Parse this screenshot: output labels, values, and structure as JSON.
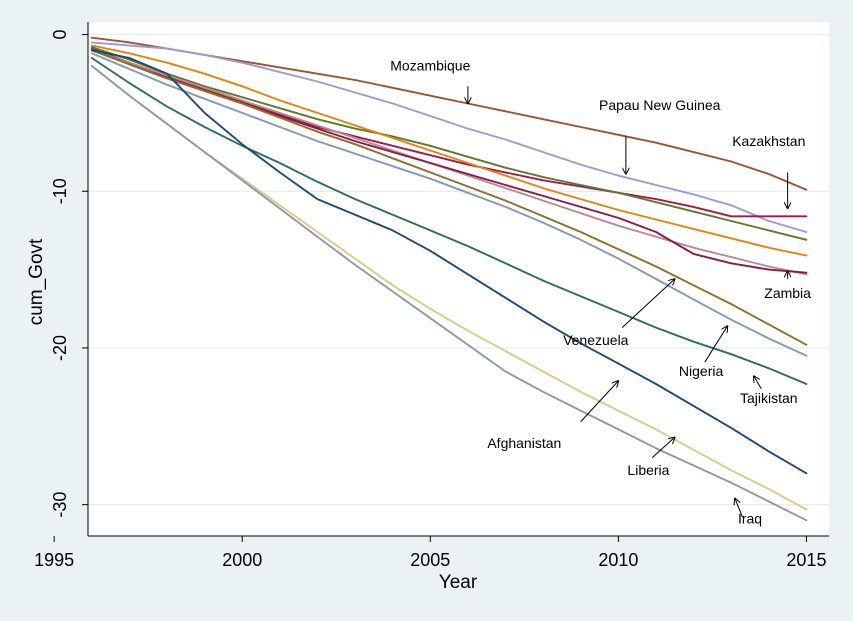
{
  "chart_data": {
    "type": "line",
    "title": "",
    "xlabel": "Year",
    "ylabel": "cum_Govt",
    "xlim": [
      1995,
      2015
    ],
    "ylim": [
      -32,
      0.8
    ],
    "xticks": [
      1995,
      2000,
      2005,
      2010,
      2015
    ],
    "yticks": [
      0,
      -10,
      -20,
      -30
    ],
    "grid": "horizontal",
    "legend": "none",
    "x": [
      1996,
      1997,
      1998,
      1999,
      2000,
      2001,
      2002,
      2003,
      2004,
      2005,
      2006,
      2007,
      2008,
      2009,
      2010,
      2011,
      2012,
      2013,
      2014,
      2015
    ],
    "series": [
      {
        "color": "#a0522d",
        "values": [
          -0.2,
          -0.5,
          -0.9,
          -1.3,
          -1.7,
          -2.1,
          -2.5,
          -2.9,
          -3.4,
          -3.9,
          -4.4,
          -4.9,
          -5.4,
          -5.9,
          -6.4,
          -6.9,
          -7.5,
          -8.1,
          -8.9,
          -9.9
        ]
      },
      {
        "color": "#9a9ad8",
        "values": [
          -0.5,
          -0.7,
          -0.9,
          -1.3,
          -1.8,
          -2.4,
          -3.0,
          -3.7,
          -4.4,
          -5.2,
          -6.0,
          -6.7,
          -7.5,
          -8.3,
          -9.0,
          -9.6,
          -10.2,
          -10.9,
          -11.9,
          -12.6
        ]
      },
      {
        "color": "#a8164a",
        "values": [
          -0.9,
          -1.8,
          -2.7,
          -3.5,
          -4.3,
          -5.1,
          -5.9,
          -6.5,
          -7.1,
          -7.7,
          -8.3,
          -8.8,
          -9.3,
          -9.7,
          -10.1,
          -10.5,
          -11.0,
          -11.6,
          -11.6,
          -11.6
        ]
      },
      {
        "color": "#5b7a2a",
        "values": [
          -0.8,
          -1.6,
          -2.5,
          -3.3,
          -4.0,
          -4.7,
          -5.4,
          -6.0,
          -6.5,
          -7.1,
          -7.8,
          -8.5,
          -9.1,
          -9.6,
          -10.1,
          -10.7,
          -11.3,
          -11.9,
          -12.5,
          -13.1
        ]
      },
      {
        "color": "#e6820e",
        "values": [
          -0.7,
          -1.2,
          -1.8,
          -2.5,
          -3.3,
          -4.2,
          -5.0,
          -5.8,
          -6.6,
          -7.4,
          -8.2,
          -9.0,
          -9.8,
          -10.5,
          -11.2,
          -11.8,
          -12.4,
          -13.0,
          -13.6,
          -14.1
        ]
      },
      {
        "color": "#b88c8c",
        "values": [
          -1.0,
          -1.8,
          -2.6,
          -3.4,
          -4.2,
          -5.0,
          -5.8,
          -6.6,
          -7.4,
          -8.2,
          -9.0,
          -9.8,
          -10.6,
          -11.4,
          -12.2,
          -12.9,
          -13.6,
          -14.2,
          -14.8,
          -15.3
        ]
      },
      {
        "color": "#8b1a4a",
        "values": [
          -1.0,
          -1.9,
          -2.8,
          -3.6,
          -4.4,
          -5.2,
          -6.0,
          -6.8,
          -7.5,
          -8.2,
          -8.9,
          -9.6,
          -10.3,
          -11.0,
          -11.7,
          -12.6,
          -14.0,
          -14.6,
          -15.0,
          -15.2
        ]
      },
      {
        "color": "#8f6e2a",
        "values": [
          -1.0,
          -1.9,
          -2.8,
          -3.6,
          -4.4,
          -5.3,
          -6.2,
          -7.0,
          -7.9,
          -8.8,
          -9.7,
          -10.6,
          -11.6,
          -12.6,
          -13.7,
          -14.8,
          -16.0,
          -17.2,
          -18.5,
          -19.8
        ]
      },
      {
        "color": "#7f9bb4",
        "values": [
          -1.2,
          -2.2,
          -3.2,
          -4.1,
          -5.0,
          -5.9,
          -6.8,
          -7.6,
          -8.4,
          -9.2,
          -10.1,
          -11.0,
          -12.0,
          -13.1,
          -14.3,
          -15.6,
          -16.9,
          -18.2,
          -19.4,
          -20.5
        ]
      },
      {
        "color": "#2e6e62",
        "values": [
          -1.5,
          -3.1,
          -4.6,
          -5.9,
          -7.1,
          -8.2,
          -9.4,
          -10.5,
          -11.5,
          -12.5,
          -13.5,
          -14.6,
          -15.7,
          -16.7,
          -17.7,
          -18.7,
          -19.6,
          -20.4,
          -21.3,
          -22.3
        ]
      },
      {
        "color": "#1e4a78",
        "values": [
          -1.0,
          -1.5,
          -2.5,
          -5.0,
          -7.0,
          -8.8,
          -10.5,
          -11.5,
          -12.5,
          -13.8,
          -15.3,
          -16.8,
          -18.3,
          -19.7,
          -21.0,
          -22.3,
          -23.7,
          -25.1,
          -26.6,
          -28.0
        ]
      },
      {
        "color": "#d9c98a",
        "values": [
          -2.0,
          -3.9,
          -5.7,
          -7.5,
          -9.2,
          -10.9,
          -12.6,
          -14.3,
          -16.0,
          -17.5,
          -18.9,
          -20.2,
          -21.5,
          -22.8,
          -24.0,
          -25.2,
          -26.5,
          -27.8,
          -29.0,
          -30.3
        ]
      },
      {
        "color": "#8d9aa0",
        "values": [
          -2.0,
          -3.9,
          -5.7,
          -7.5,
          -9.3,
          -11.1,
          -12.9,
          -14.7,
          -16.4,
          -18.1,
          -19.8,
          -21.5,
          -22.8,
          -24.0,
          -25.2,
          -26.4,
          -27.5,
          -28.6,
          -29.8,
          -31.0
        ]
      }
    ],
    "annotations": [
      {
        "label": "Mozambique",
        "text_xy": [
          2005,
          -2.3
        ],
        "arrow_from": [
          2006,
          -3.3
        ],
        "arrow_to": [
          2006,
          -4.4
        ]
      },
      {
        "label": "Papau New Guinea",
        "text_xy": [
          2011.1,
          -4.8
        ],
        "arrow_from": [
          2010.2,
          -6.5
        ],
        "arrow_to": [
          2010.2,
          -8.9
        ]
      },
      {
        "label": "Kazakhstan",
        "text_xy": [
          2014.0,
          -7.1
        ],
        "arrow_from": [
          2014.5,
          -8.8
        ],
        "arrow_to": [
          2014.5,
          -11.1
        ]
      },
      {
        "label": "Zambia",
        "text_xy": [
          2014.5,
          -16.8
        ],
        "arrow_from": [
          2014.5,
          -15.6
        ],
        "arrow_to": [
          2014.5,
          -15.1
        ]
      },
      {
        "label": "Venezuela",
        "text_xy": [
          2009.4,
          -19.8
        ],
        "arrow_from": [
          2010.1,
          -18.7
        ],
        "arrow_to": [
          2011.5,
          -15.6
        ]
      },
      {
        "label": "Nigeria",
        "text_xy": [
          2012.2,
          -21.8
        ],
        "arrow_from": [
          2012.3,
          -20.9
        ],
        "arrow_to": [
          2012.9,
          -18.6
        ]
      },
      {
        "label": "Tajikistan",
        "text_xy": [
          2014.0,
          -23.5
        ],
        "arrow_from": [
          2013.8,
          -22.6
        ],
        "arrow_to": [
          2013.6,
          -21.8
        ]
      },
      {
        "label": "Afghanistan",
        "text_xy": [
          2007.5,
          -26.4
        ],
        "arrow_from": [
          2009.0,
          -24.7
        ],
        "arrow_to": [
          2010.0,
          -22.1
        ]
      },
      {
        "label": "Liberia",
        "text_xy": [
          2010.8,
          -28.1
        ],
        "arrow_from": [
          2010.9,
          -27.0
        ],
        "arrow_to": [
          2011.5,
          -25.7
        ]
      },
      {
        "label": "Iraq",
        "text_xy": [
          2013.5,
          -31.2
        ],
        "arrow_from": [
          2013.3,
          -30.8
        ],
        "arrow_to": [
          2013.1,
          -29.6
        ]
      }
    ]
  }
}
